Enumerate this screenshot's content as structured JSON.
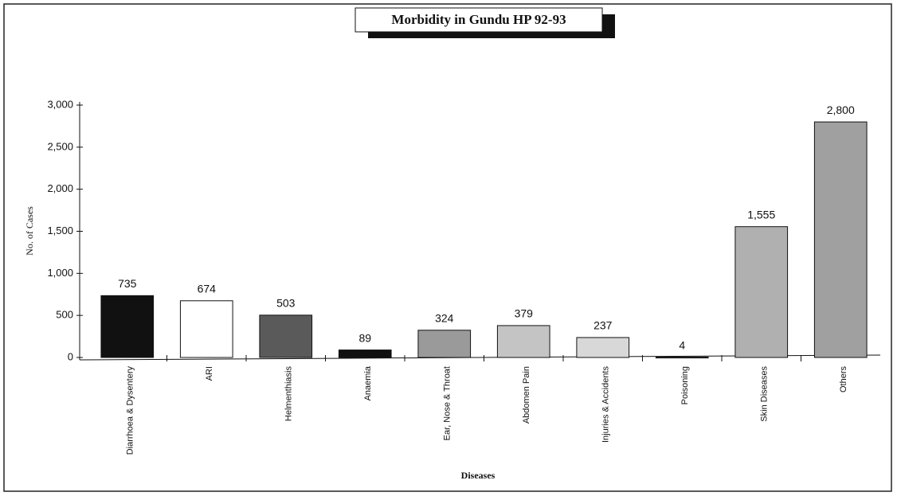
{
  "chart_data": {
    "type": "bar",
    "title": "Morbidity in Gundu HP 92-93",
    "x_label": "Diseases",
    "y_label": "No. of Cases",
    "categories": [
      "Diarrhoea & Dysentery",
      "ARI",
      "Helmenthiasis",
      "Anaemia",
      "Ear, Nose & Throat",
      "Abdomen Pain",
      "Injuries & Accidents",
      "Poisoning",
      "Skin Diseases",
      "Others"
    ],
    "values": [
      735,
      674,
      503,
      89,
      324,
      379,
      237,
      4,
      1555,
      2800
    ],
    "value_labels": [
      "735",
      "674",
      "503",
      "89",
      "324",
      "379",
      "237",
      "4",
      "1,555",
      "2,800"
    ],
    "colors": [
      "#111111",
      "#ffffff",
      "#5a5a5a",
      "#111111",
      "#9a9a9a",
      "#c4c4c4",
      "#d8d8d8",
      "#888888",
      "#b0b0b0",
      "#a0a0a0"
    ],
    "ylim": [
      0,
      3000
    ],
    "yticks": [
      0,
      500,
      {
        "value": 1000,
        "label": "1,000"
      },
      {
        "value": 1500,
        "label": "1,500"
      },
      {
        "value": 2000,
        "label": "2,000"
      },
      {
        "value": 2500,
        "label": "2,500"
      },
      {
        "value": 3000,
        "label": "3,000"
      }
    ],
    "grid": false
  }
}
